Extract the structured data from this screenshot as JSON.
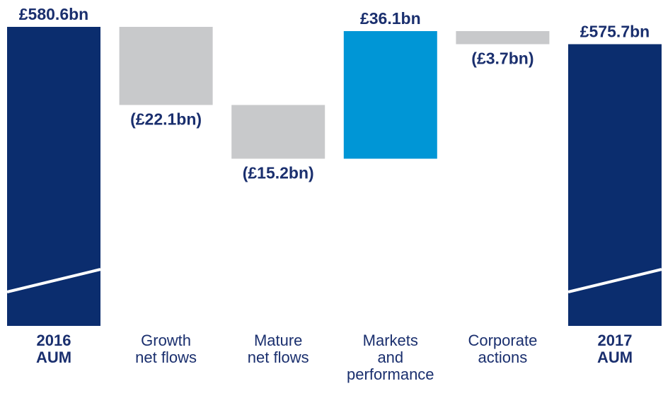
{
  "chart_data": {
    "type": "waterfall",
    "categories": [
      "2016\nAUM",
      "Growth\nnet flows",
      "Mature\nnet flows",
      "Markets\nand\nperformance",
      "Corporate\nactions",
      "2017\nAUM"
    ],
    "values": [
      580.6,
      -22.1,
      -15.2,
      36.1,
      -3.7,
      575.7
    ],
    "value_labels": [
      "£580.6bn",
      "(£22.1bn)",
      "(£15.2bn)",
      "£36.1bn",
      "(£3.7bn)",
      "£575.7bn"
    ],
    "measure": [
      "total",
      "relative",
      "relative",
      "relative",
      "relative",
      "total"
    ],
    "total_color": "#0b2d6e",
    "increase_color": "#0096d6",
    "decrease_color": "#c8c9cb",
    "ylim": [
      496,
      584
    ]
  }
}
